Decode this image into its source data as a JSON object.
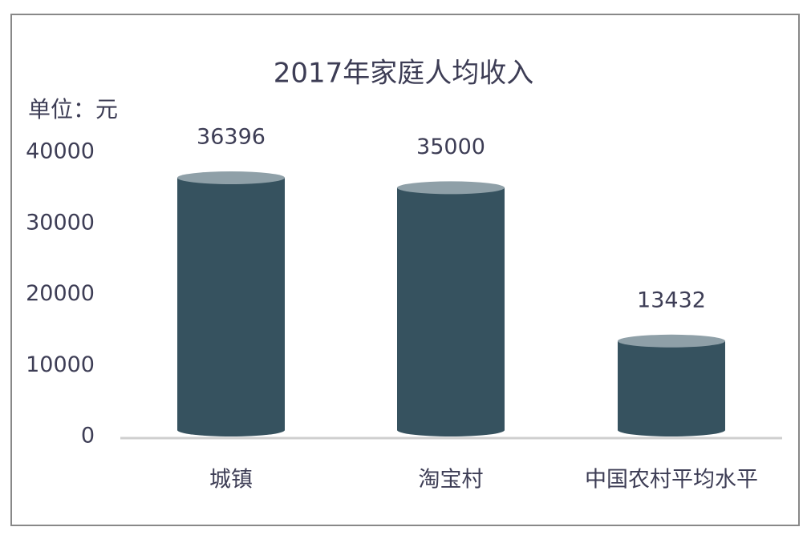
{
  "chart_data": {
    "type": "cylinder-bar",
    "title": "2017年家庭人均收入",
    "unit_label": "单位：元",
    "categories": [
      "城镇",
      "淘宝村",
      "中国农村平均水平"
    ],
    "values": [
      36396,
      35000,
      13432
    ],
    "color": "#36525f",
    "top_color": "#8fa0a8",
    "ylim": [
      0,
      40000
    ],
    "yticks": [
      0,
      10000,
      20000,
      30000,
      40000
    ]
  }
}
